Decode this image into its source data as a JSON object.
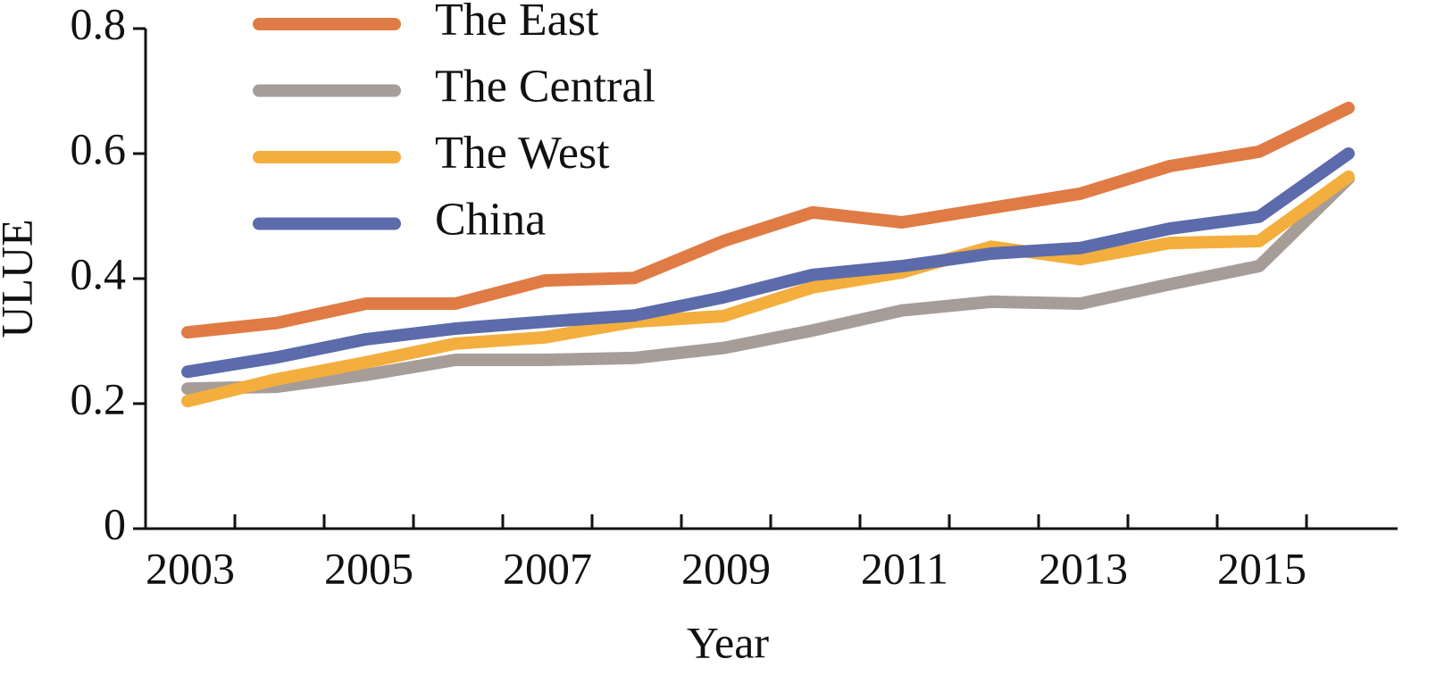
{
  "chart_data": {
    "type": "line",
    "x_label": "Year",
    "y_label": "ULUE",
    "categories": [
      "2003",
      null,
      "2005",
      null,
      "2007",
      null,
      "2009",
      null,
      "2011",
      null,
      "2013",
      null,
      "2015",
      null
    ],
    "series": [
      {
        "name": "The East",
        "color": "#e07b45",
        "values": [
          0.314,
          0.329,
          0.36,
          0.36,
          0.397,
          0.401,
          0.46,
          0.506,
          0.49,
          0.513,
          0.536,
          0.58,
          0.603,
          0.673
        ]
      },
      {
        "name": "The Central",
        "color": "#a79d98",
        "values": [
          0.224,
          0.227,
          0.246,
          0.27,
          0.27,
          0.273,
          0.289,
          0.317,
          0.349,
          0.363,
          0.36,
          0.391,
          0.42,
          0.56
        ]
      },
      {
        "name": "The West",
        "color": "#f3ae3d",
        "values": [
          0.204,
          0.239,
          0.266,
          0.296,
          0.306,
          0.331,
          0.34,
          0.386,
          0.41,
          0.451,
          0.431,
          0.457,
          0.46,
          0.563
        ]
      },
      {
        "name": "China",
        "color": "#5b6bab",
        "values": [
          0.251,
          0.274,
          0.303,
          0.32,
          0.331,
          0.341,
          0.37,
          0.406,
          0.42,
          0.44,
          0.449,
          0.48,
          0.499,
          0.6
        ]
      }
    ],
    "ylim": [
      0,
      0.8
    ],
    "yticks": [
      0,
      0.2,
      0.4,
      0.6,
      0.8
    ],
    "legend": "top-left"
  }
}
